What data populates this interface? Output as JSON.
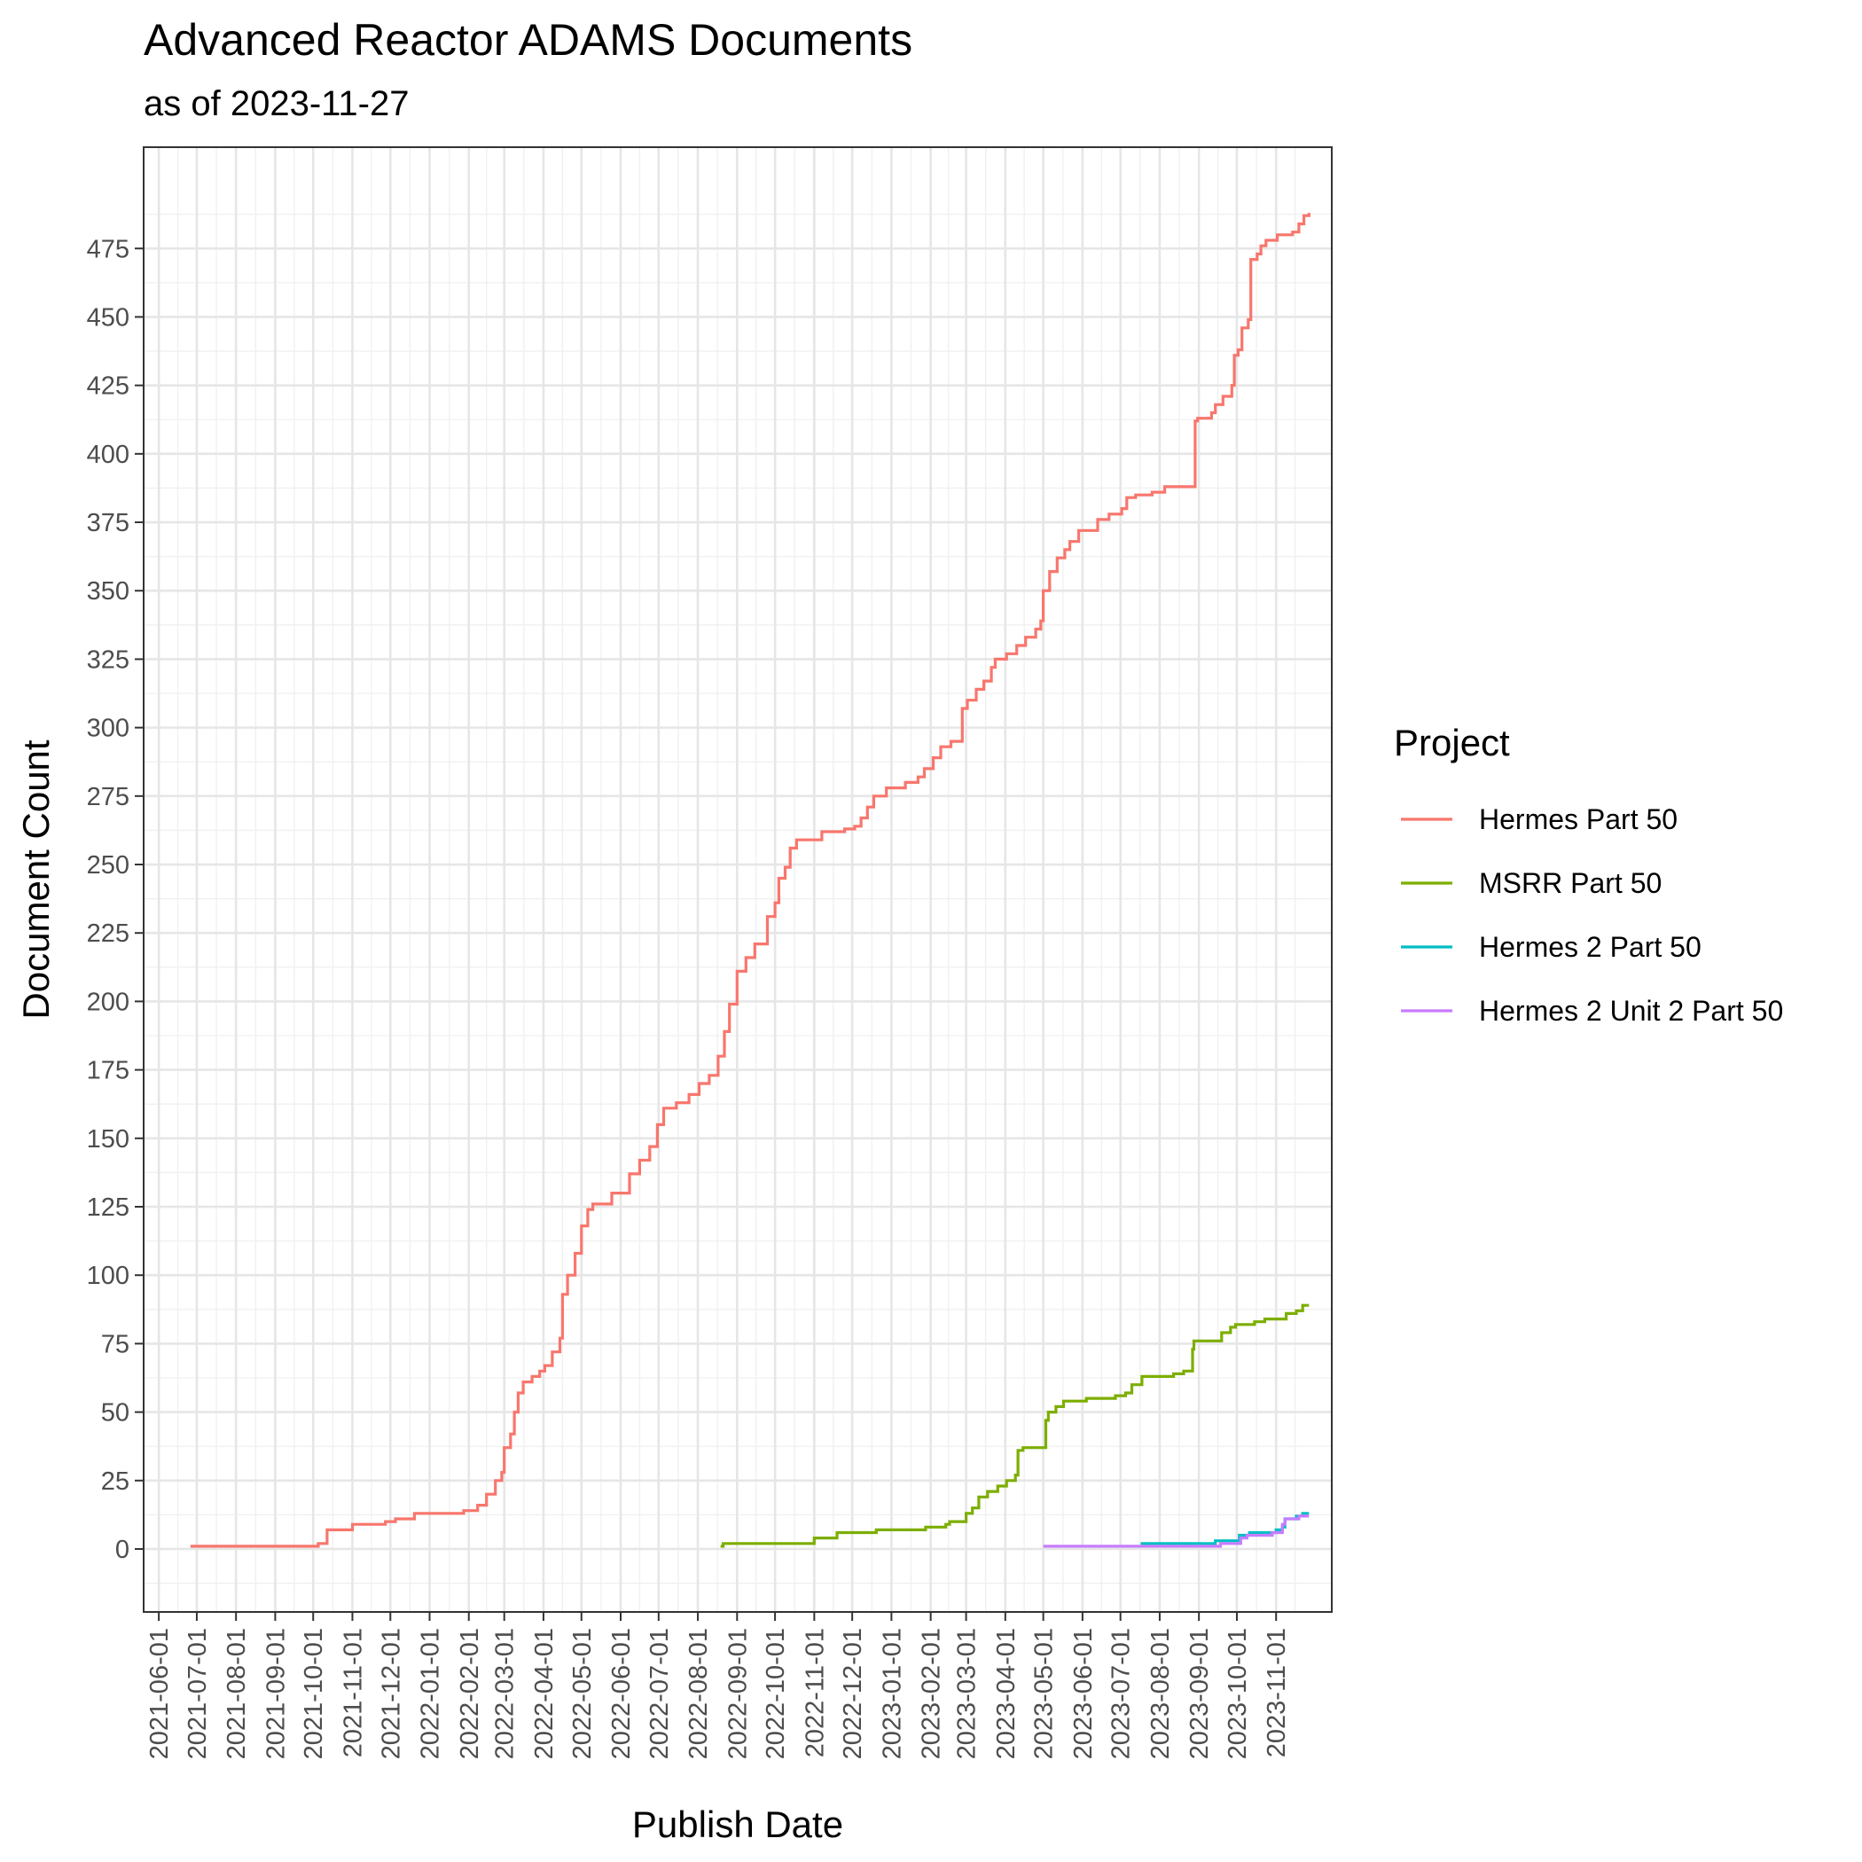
{
  "chart_data": {
    "type": "line",
    "step": true,
    "title": "Advanced Reactor ADAMS Documents",
    "subtitle": "as of 2023-11-27",
    "xlabel": "Publish Date",
    "ylabel": "Document Count",
    "x_axis": {
      "scale": "date",
      "ticks": [
        "2021-06-01",
        "2021-07-01",
        "2021-08-01",
        "2021-09-01",
        "2021-10-01",
        "2021-11-01",
        "2021-12-01",
        "2022-01-01",
        "2022-02-01",
        "2022-03-01",
        "2022-04-01",
        "2022-05-01",
        "2022-06-01",
        "2022-07-01",
        "2022-08-01",
        "2022-09-01",
        "2022-10-01",
        "2022-11-01",
        "2022-12-01",
        "2023-01-01",
        "2023-02-01",
        "2023-03-01",
        "2023-04-01",
        "2023-05-01",
        "2023-06-01",
        "2023-07-01",
        "2023-08-01",
        "2023-09-01",
        "2023-10-01",
        "2023-11-01"
      ],
      "range": [
        "2021-05-20",
        "2023-12-15"
      ]
    },
    "y_axis": {
      "ticks": [
        0,
        25,
        50,
        75,
        100,
        125,
        150,
        175,
        200,
        225,
        250,
        275,
        300,
        325,
        350,
        375,
        400,
        425,
        450,
        475
      ],
      "range": [
        -23,
        512
      ]
    },
    "grid": true,
    "legend": {
      "title": "Project",
      "position": "right"
    },
    "series": [
      {
        "name": "Hermes Part 50",
        "color": "#F8766D",
        "points": [
          [
            "2021-06-26",
            1
          ],
          [
            "2021-10-01",
            1
          ],
          [
            "2021-10-05",
            2
          ],
          [
            "2021-10-12",
            7
          ],
          [
            "2021-11-01",
            9
          ],
          [
            "2021-11-27",
            10
          ],
          [
            "2021-12-05",
            11
          ],
          [
            "2021-12-20",
            13
          ],
          [
            "2022-01-28",
            14
          ],
          [
            "2022-02-08",
            16
          ],
          [
            "2022-02-15",
            20
          ],
          [
            "2022-02-22",
            25
          ],
          [
            "2022-02-27",
            28
          ],
          [
            "2022-03-01",
            37
          ],
          [
            "2022-03-06",
            42
          ],
          [
            "2022-03-09",
            50
          ],
          [
            "2022-03-12",
            57
          ],
          [
            "2022-03-16",
            61
          ],
          [
            "2022-03-23",
            63
          ],
          [
            "2022-03-29",
            65
          ],
          [
            "2022-04-02",
            67
          ],
          [
            "2022-04-08",
            72
          ],
          [
            "2022-04-14",
            77
          ],
          [
            "2022-04-16",
            93
          ],
          [
            "2022-04-20",
            100
          ],
          [
            "2022-04-26",
            108
          ],
          [
            "2022-05-01",
            118
          ],
          [
            "2022-05-06",
            124
          ],
          [
            "2022-05-10",
            126
          ],
          [
            "2022-05-25",
            130
          ],
          [
            "2022-06-08",
            137
          ],
          [
            "2022-06-16",
            142
          ],
          [
            "2022-06-24",
            147
          ],
          [
            "2022-06-30",
            155
          ],
          [
            "2022-07-05",
            161
          ],
          [
            "2022-07-15",
            163
          ],
          [
            "2022-07-25",
            166
          ],
          [
            "2022-08-02",
            170
          ],
          [
            "2022-08-10",
            173
          ],
          [
            "2022-08-17",
            180
          ],
          [
            "2022-08-22",
            189
          ],
          [
            "2022-08-26",
            199
          ],
          [
            "2022-09-01",
            211
          ],
          [
            "2022-09-08",
            216
          ],
          [
            "2022-09-15",
            221
          ],
          [
            "2022-09-25",
            231
          ],
          [
            "2022-10-01",
            236
          ],
          [
            "2022-10-04",
            245
          ],
          [
            "2022-10-09",
            249
          ],
          [
            "2022-10-13",
            256
          ],
          [
            "2022-10-18",
            259
          ],
          [
            "2022-11-07",
            262
          ],
          [
            "2022-11-25",
            263
          ],
          [
            "2022-12-03",
            264
          ],
          [
            "2022-12-08",
            267
          ],
          [
            "2022-12-13",
            271
          ],
          [
            "2022-12-18",
            275
          ],
          [
            "2022-12-28",
            278
          ],
          [
            "2023-01-12",
            280
          ],
          [
            "2023-01-22",
            282
          ],
          [
            "2023-01-27",
            285
          ],
          [
            "2023-02-03",
            289
          ],
          [
            "2023-02-09",
            293
          ],
          [
            "2023-02-17",
            295
          ],
          [
            "2023-02-26",
            307
          ],
          [
            "2023-03-02",
            310
          ],
          [
            "2023-03-09",
            314
          ],
          [
            "2023-03-15",
            317
          ],
          [
            "2023-03-21",
            322
          ],
          [
            "2023-03-24",
            325
          ],
          [
            "2023-04-02",
            327
          ],
          [
            "2023-04-10",
            330
          ],
          [
            "2023-04-17",
            333
          ],
          [
            "2023-04-25",
            336
          ],
          [
            "2023-04-29",
            339
          ],
          [
            "2023-05-01",
            350
          ],
          [
            "2023-05-06",
            357
          ],
          [
            "2023-05-12",
            362
          ],
          [
            "2023-05-18",
            365
          ],
          [
            "2023-05-22",
            368
          ],
          [
            "2023-05-29",
            372
          ],
          [
            "2023-06-13",
            376
          ],
          [
            "2023-06-22",
            378
          ],
          [
            "2023-07-02",
            380
          ],
          [
            "2023-07-06",
            384
          ],
          [
            "2023-07-13",
            385
          ],
          [
            "2023-07-26",
            386
          ],
          [
            "2023-08-05",
            388
          ],
          [
            "2023-08-27",
            388
          ],
          [
            "2023-08-29",
            412
          ],
          [
            "2023-08-31",
            413
          ],
          [
            "2023-09-11",
            415
          ],
          [
            "2023-09-14",
            418
          ],
          [
            "2023-09-20",
            421
          ],
          [
            "2023-09-27",
            425
          ],
          [
            "2023-09-29",
            436
          ],
          [
            "2023-10-02",
            438
          ],
          [
            "2023-10-05",
            446
          ],
          [
            "2023-10-10",
            449
          ],
          [
            "2023-10-12",
            471
          ],
          [
            "2023-10-17",
            473
          ],
          [
            "2023-10-20",
            476
          ],
          [
            "2023-10-24",
            478
          ],
          [
            "2023-11-02",
            480
          ],
          [
            "2023-11-14",
            481
          ],
          [
            "2023-11-19",
            484
          ],
          [
            "2023-11-23",
            487
          ],
          [
            "2023-11-27",
            488
          ]
        ]
      },
      {
        "name": "MSRR Part 50",
        "color": "#7CAE00",
        "points": [
          [
            "2022-08-19",
            1
          ],
          [
            "2022-08-21",
            2
          ],
          [
            "2022-11-01",
            4
          ],
          [
            "2022-11-19",
            6
          ],
          [
            "2022-12-20",
            7
          ],
          [
            "2023-01-28",
            8
          ],
          [
            "2023-02-13",
            9
          ],
          [
            "2023-02-16",
            10
          ],
          [
            "2023-03-01",
            13
          ],
          [
            "2023-03-06",
            15
          ],
          [
            "2023-03-11",
            19
          ],
          [
            "2023-03-18",
            21
          ],
          [
            "2023-03-26",
            23
          ],
          [
            "2023-04-02",
            25
          ],
          [
            "2023-04-09",
            27
          ],
          [
            "2023-04-11",
            36
          ],
          [
            "2023-04-15",
            37
          ],
          [
            "2023-05-03",
            47
          ],
          [
            "2023-05-05",
            50
          ],
          [
            "2023-05-11",
            52
          ],
          [
            "2023-05-17",
            54
          ],
          [
            "2023-06-04",
            55
          ],
          [
            "2023-06-27",
            56
          ],
          [
            "2023-07-05",
            57
          ],
          [
            "2023-07-10",
            60
          ],
          [
            "2023-07-18",
            63
          ],
          [
            "2023-08-12",
            64
          ],
          [
            "2023-08-20",
            65
          ],
          [
            "2023-08-27",
            73
          ],
          [
            "2023-08-28",
            76
          ],
          [
            "2023-09-19",
            79
          ],
          [
            "2023-09-26",
            81
          ],
          [
            "2023-09-30",
            82
          ],
          [
            "2023-10-15",
            83
          ],
          [
            "2023-10-23",
            84
          ],
          [
            "2023-11-09",
            86
          ],
          [
            "2023-11-17",
            87
          ],
          [
            "2023-11-22",
            89
          ],
          [
            "2023-11-27",
            89
          ]
        ]
      },
      {
        "name": "Hermes 2 Part 50",
        "color": "#00BFC4",
        "points": [
          [
            "2023-07-17",
            2
          ],
          [
            "2023-09-14",
            3
          ],
          [
            "2023-10-03",
            5
          ],
          [
            "2023-10-11",
            6
          ],
          [
            "2023-11-01",
            7
          ],
          [
            "2023-11-06",
            8
          ],
          [
            "2023-11-08",
            11
          ],
          [
            "2023-11-17",
            12
          ],
          [
            "2023-11-22",
            13
          ],
          [
            "2023-11-27",
            13
          ]
        ]
      },
      {
        "name": "Hermes 2 Unit 2 Part 50",
        "color": "#C77CFF",
        "points": [
          [
            "2023-05-01",
            1
          ],
          [
            "2023-09-14",
            1
          ],
          [
            "2023-09-18",
            2
          ],
          [
            "2023-10-04",
            4
          ],
          [
            "2023-10-09",
            5
          ],
          [
            "2023-10-29",
            6
          ],
          [
            "2023-11-06",
            9
          ],
          [
            "2023-11-08",
            11
          ],
          [
            "2023-11-19",
            12
          ],
          [
            "2023-11-27",
            12
          ]
        ]
      }
    ]
  }
}
